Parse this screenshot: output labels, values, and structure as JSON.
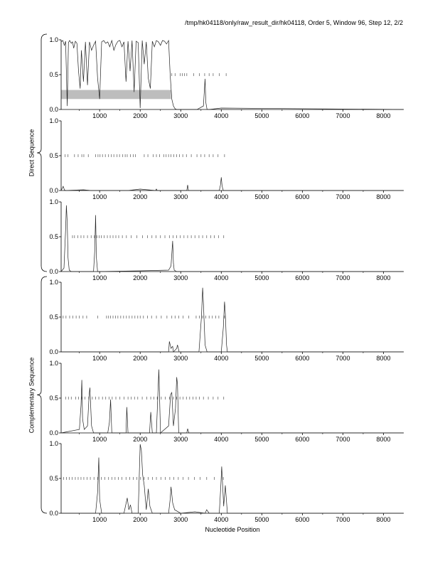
{
  "header_text": "/tmp/hk04118/only/raw_result_dir/hk04118, Order 5, Window 96, Step 12, 2/2",
  "xlabel": "Nucleotide Position",
  "group_labels": [
    "Direct Sequence",
    "Complementary Sequence"
  ],
  "chart_data": [
    {
      "type": "line",
      "panel": 1,
      "group": "Direct Sequence",
      "xlim": [
        50,
        8500
      ],
      "ylim": [
        0,
        1
      ],
      "xticks": [
        1000,
        2000,
        3000,
        4000,
        5000,
        6000,
        7000,
        8000
      ],
      "yticks": [
        0.0,
        0.5,
        1.0
      ],
      "ytick_labels": [
        "0.0",
        "0.5",
        "1.0"
      ],
      "shaded_region": {
        "x": [
          50,
          2760
        ],
        "y": [
          0.15,
          0.28
        ]
      },
      "ticks_row_y": 0.5,
      "ticks_x": [
        2780,
        2860,
        2990,
        3040,
        3090,
        3150,
        3320,
        3460,
        3590,
        3700,
        3800,
        3950,
        4120
      ],
      "x": [
        50,
        90,
        130,
        160,
        200,
        230,
        260,
        300,
        330,
        360,
        400,
        440,
        480,
        520,
        550,
        600,
        650,
        700,
        750,
        800,
        850,
        900,
        950,
        1000,
        1050,
        1100,
        1150,
        1200,
        1250,
        1300,
        1350,
        1400,
        1450,
        1500,
        1550,
        1600,
        1650,
        1700,
        1750,
        1800,
        1850,
        1900,
        1950,
        2000,
        2050,
        2100,
        2150,
        2200,
        2250,
        2300,
        2350,
        2400,
        2450,
        2500,
        2550,
        2600,
        2650,
        2700,
        2740,
        2780,
        2820,
        2860,
        2900,
        3000,
        3200,
        3400,
        3560,
        3600,
        3620,
        3650,
        3700,
        4000,
        8500
      ],
      "y": [
        0.97,
        0.99,
        0.92,
        0.98,
        0.05,
        0.96,
        0.99,
        0.95,
        0.97,
        0.88,
        0.98,
        0.95,
        0.55,
        0.3,
        0.85,
        0.4,
        0.97,
        0.35,
        0.97,
        0.85,
        0.92,
        0.98,
        0.45,
        0.15,
        0.97,
        0.99,
        0.95,
        0.97,
        0.9,
        0.99,
        0.85,
        0.93,
        0.98,
        0.99,
        0.9,
        0.97,
        0.4,
        0.98,
        0.55,
        0.99,
        0.25,
        0.98,
        0.96,
        0.02,
        0.99,
        0.65,
        0.97,
        0.45,
        0.3,
        0.98,
        0.9,
        0.99,
        0.97,
        0.92,
        0.99,
        0.98,
        0.94,
        0.99,
        0.5,
        0.15,
        0.05,
        0.01,
        0.0,
        0.0,
        0.0,
        0.0,
        0.05,
        0.44,
        0.1,
        0.0,
        0.0,
        0.02,
        0.0
      ]
    },
    {
      "type": "line",
      "panel": 2,
      "group": "Direct Sequence",
      "xlim": [
        50,
        8500
      ],
      "ylim": [
        0,
        1
      ],
      "xticks": [
        1000,
        2000,
        3000,
        4000,
        5000,
        6000,
        7000,
        8000
      ],
      "yticks": [
        0.0,
        0.5,
        1.0
      ],
      "ytick_labels": [
        "0.0",
        "0.5",
        "1.0"
      ],
      "ticks_row_y": 0.5,
      "ticks_x": [
        150,
        220,
        380,
        470,
        560,
        610,
        720,
        900,
        960,
        1010,
        1070,
        1140,
        1220,
        1290,
        1350,
        1430,
        1490,
        1570,
        1630,
        1680,
        1760,
        1830,
        1880,
        2100,
        2190,
        2320,
        2400,
        2480,
        2580,
        2640,
        2700,
        2760,
        2830,
        2900,
        2970,
        3050,
        3140,
        3260,
        3400,
        3500,
        3590,
        3700,
        3800,
        3920,
        4080
      ],
      "x": [
        50,
        100,
        130,
        160,
        600,
        800,
        1700,
        2000,
        2380,
        2400,
        2420,
        3000,
        3150,
        3170,
        3190,
        3950,
        3980,
        4000,
        4020,
        4050,
        8500
      ],
      "y": [
        0.0,
        0.06,
        0.01,
        0.0,
        0.01,
        0.0,
        0.0,
        0.02,
        0.0,
        0.02,
        0.0,
        0.0,
        0.0,
        0.08,
        0.0,
        0.0,
        0.08,
        0.19,
        0.06,
        0.0,
        0.0
      ]
    },
    {
      "type": "line",
      "panel": 3,
      "group": "Direct Sequence",
      "xlim": [
        50,
        8500
      ],
      "ylim": [
        0,
        1
      ],
      "xticks": [
        1000,
        2000,
        3000,
        4000,
        5000,
        6000,
        7000,
        8000
      ],
      "yticks": [
        0.0,
        0.5,
        1.0
      ],
      "ytick_labels": [
        "0.0",
        "0.5",
        "1.0"
      ],
      "ticks_row_y": 0.5,
      "ticks_x": [
        330,
        380,
        460,
        540,
        610,
        700,
        790,
        870,
        930,
        990,
        1040,
        1110,
        1190,
        1260,
        1330,
        1400,
        1470,
        1560,
        1660,
        1780,
        1920,
        2060,
        2180,
        2290,
        2390,
        2500,
        2610,
        2720,
        2810,
        2900,
        2990,
        3080,
        3170,
        3260,
        3350,
        3450,
        3540,
        3640,
        3740,
        3830,
        3930,
        4060
      ],
      "x": [
        50,
        120,
        160,
        180,
        200,
        220,
        250,
        300,
        850,
        880,
        900,
        920,
        950,
        1000,
        2000,
        2700,
        2760,
        2800,
        2820,
        2840,
        2900,
        8500
      ],
      "y": [
        0.0,
        0.05,
        0.6,
        0.95,
        0.7,
        0.2,
        0.02,
        0.0,
        0.0,
        0.3,
        0.81,
        0.2,
        0.0,
        0.0,
        0.01,
        0.02,
        0.08,
        0.44,
        0.12,
        0.02,
        0.0,
        0.0
      ]
    },
    {
      "type": "line",
      "panel": 4,
      "group": "Complementary Sequence",
      "xlim": [
        50,
        8500
      ],
      "ylim": [
        0,
        1
      ],
      "xticks": [
        1000,
        2000,
        3000,
        4000,
        5000,
        6000,
        7000,
        8000
      ],
      "yticks": [
        0.0,
        0.5,
        1.0
      ],
      "ytick_labels": [
        "0.0",
        "0.5",
        "1.0"
      ],
      "ticks_row_y": 0.5,
      "ticks_x": [
        100,
        170,
        260,
        340,
        420,
        500,
        590,
        680,
        950,
        1170,
        1220,
        1270,
        1330,
        1390,
        1450,
        1520,
        1590,
        1660,
        1730,
        1800,
        1870,
        1940,
        2000,
        2080,
        2180,
        2280,
        2400,
        2520,
        2660,
        2780,
        2860,
        2950,
        3060,
        3200,
        3380,
        3460,
        3540,
        3620,
        3700,
        3780,
        3860,
        3940,
        4080
      ],
      "x": [
        50,
        2600,
        2700,
        2720,
        2760,
        2800,
        2820,
        2900,
        2920,
        2960,
        3000,
        3200,
        3450,
        3510,
        3540,
        3560,
        3600,
        3650,
        4000,
        4050,
        4080,
        4100,
        4130,
        4150,
        8500
      ],
      "y": [
        0.0,
        0.0,
        0.0,
        0.15,
        0.05,
        0.08,
        0.0,
        0.05,
        0.1,
        0.0,
        0.0,
        0.0,
        0.0,
        0.5,
        0.92,
        0.7,
        0.1,
        0.0,
        0.0,
        0.35,
        0.72,
        0.55,
        0.1,
        0.0,
        0.0
      ]
    },
    {
      "type": "line",
      "panel": 5,
      "group": "Complementary Sequence",
      "xlim": [
        50,
        8500
      ],
      "ylim": [
        0,
        1
      ],
      "xticks": [
        1000,
        2000,
        3000,
        4000,
        5000,
        6000,
        7000,
        8000
      ],
      "yticks": [
        0.0,
        0.5,
        1.0
      ],
      "ytick_labels": [
        "0.0",
        "0.5",
        "1.0"
      ],
      "ticks_row_y": 0.5,
      "ticks_x": [
        160,
        230,
        300,
        410,
        480,
        560,
        640,
        730,
        820,
        900,
        980,
        1070,
        1150,
        1230,
        1310,
        1400,
        1500,
        1600,
        1700,
        1780,
        1860,
        1940,
        2050,
        2160,
        2260,
        2340,
        2420,
        2520,
        2620,
        2720,
        2820,
        2900,
        2980,
        3060,
        3140,
        3220,
        3300,
        3380,
        3460,
        3560,
        3680,
        3800,
        3920,
        4060
      ],
      "x": [
        50,
        500,
        540,
        560,
        580,
        620,
        700,
        740,
        760,
        800,
        850,
        1200,
        1240,
        1270,
        1300,
        1650,
        1670,
        1700,
        2230,
        2260,
        2300,
        2400,
        2440,
        2460,
        2500,
        2700,
        2750,
        2780,
        2820,
        2870,
        2900,
        2920,
        2950,
        3150,
        3170,
        3200,
        8500
      ],
      "y": [
        0.0,
        0.05,
        0.4,
        0.76,
        0.2,
        0.05,
        0.1,
        0.55,
        0.65,
        0.1,
        0.0,
        0.0,
        0.15,
        0.48,
        0.0,
        0.0,
        0.37,
        0.0,
        0.0,
        0.3,
        0.0,
        0.0,
        0.6,
        0.91,
        0.0,
        0.1,
        0.55,
        0.58,
        0.1,
        0.35,
        0.8,
        0.7,
        0.0,
        0.0,
        0.06,
        0.0,
        0.0
      ]
    },
    {
      "type": "line",
      "panel": 6,
      "group": "Complementary Sequence",
      "xlim": [
        50,
        8500
      ],
      "ylim": [
        0,
        1
      ],
      "xticks": [
        1000,
        2000,
        3000,
        4000,
        5000,
        6000,
        7000,
        8000
      ],
      "yticks": [
        0.0,
        0.5,
        1.0
      ],
      "ytick_labels": [
        "0.0",
        "0.5",
        "1.0"
      ],
      "ticks_row_y": 0.5,
      "ticks_x": [
        110,
        180,
        250,
        320,
        400,
        470,
        540,
        610,
        690,
        770,
        860,
        950,
        1040,
        1130,
        1220,
        1300,
        1380,
        1460,
        1550,
        1650,
        1740,
        1830,
        1920,
        2010,
        2100,
        2200,
        2300,
        2400,
        2510,
        2620,
        2730,
        2830,
        2940,
        3060,
        3190,
        3340,
        3480,
        3640,
        3830,
        4050
      ],
      "x": [
        50,
        900,
        950,
        980,
        1000,
        1050,
        1600,
        1680,
        1720,
        1760,
        1800,
        1950,
        1980,
        2000,
        2030,
        2060,
        2100,
        2150,
        2200,
        2240,
        2300,
        2700,
        2740,
        2760,
        2800,
        2850,
        3000,
        3350,
        3600,
        3640,
        3700,
        3950,
        3990,
        4010,
        4060,
        4100,
        4150,
        8500
      ],
      "y": [
        0.0,
        0.0,
        0.3,
        0.8,
        0.2,
        0.0,
        0.0,
        0.22,
        0.05,
        0.12,
        0.0,
        0.0,
        0.6,
        0.99,
        0.9,
        0.55,
        0.4,
        0.05,
        0.35,
        0.1,
        0.0,
        0.0,
        0.2,
        0.38,
        0.15,
        0.05,
        0.0,
        0.02,
        0.0,
        0.05,
        0.0,
        0.0,
        0.4,
        0.67,
        0.1,
        0.4,
        0.0,
        0.0
      ]
    }
  ]
}
